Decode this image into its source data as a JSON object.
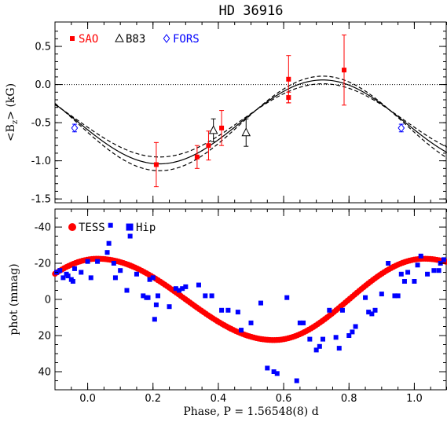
{
  "chart_data": [
    {
      "type": "scatter",
      "title": "HD 36916",
      "ylabel": "<B_z> (kG)",
      "xlim": [
        -0.1,
        1.1
      ],
      "ylim": [
        -1.55,
        0.82
      ],
      "xticks": [
        0.0,
        0.2,
        0.4,
        0.6,
        0.8,
        1.0
      ],
      "yticks": [
        -1.5,
        -1.0,
        -0.5,
        0.0,
        0.5
      ],
      "ytick_labels": [
        "-1.5",
        "-1.0",
        "-0.5",
        "0.0",
        "0.5"
      ],
      "show_xtick_labels": false,
      "zero_line": true,
      "legend_position": "top-left",
      "model": {
        "mean": -0.49,
        "amplitude": 0.55,
        "phase_of_max": 0.72,
        "band_amplitude": [
          0.48,
          0.62
        ],
        "band_mean": [
          -0.47,
          -0.51
        ]
      },
      "series": [
        {
          "name": "SAO",
          "color": "#ff0000",
          "marker": "square",
          "x": [
            0.21,
            0.335,
            0.37,
            0.41,
            0.615,
            0.615,
            0.785
          ],
          "y": [
            -1.05,
            -0.95,
            -0.8,
            -0.57,
            0.07,
            -0.17,
            0.19
          ],
          "err": [
            0.29,
            0.15,
            0.19,
            0.23,
            0.31,
            0.07,
            0.46
          ]
        },
        {
          "name": "B83",
          "color": "#000000",
          "marker": "triangle",
          "x": [
            0.385,
            0.485
          ],
          "y": [
            -0.6,
            -0.63
          ],
          "err": [
            0.15,
            0.18
          ]
        },
        {
          "name": "FORS",
          "color": "#0000ff",
          "marker": "diamond",
          "x": [
            -0.04,
            0.96
          ],
          "y": [
            -0.57,
            -0.57
          ],
          "err": [
            0.05,
            0.05
          ]
        }
      ]
    },
    {
      "type": "scatter",
      "ylabel": "phot (mmag)",
      "xlabel": "Phase, P = 1.56548(8) d",
      "xlim": [
        -0.1,
        1.1
      ],
      "ylim": [
        50,
        -50
      ],
      "y_inverted": true,
      "xticks": [
        0.0,
        0.2,
        0.4,
        0.6,
        0.8,
        1.0
      ],
      "xtick_labels": [
        "0.0",
        "0.2",
        "0.4",
        "0.6",
        "0.8",
        "1.0"
      ],
      "yticks": [
        -40,
        -20,
        0,
        20,
        40
      ],
      "ytick_labels": [
        "-40",
        "-20",
        "0",
        "20",
        "40"
      ],
      "legend_position": "top-left",
      "tess_model": {
        "mean": 0,
        "amplitude": 22.5,
        "phase_of_min_brightness": 0.57,
        "phase_of_max_brightness": 1.03,
        "step": 0.007
      },
      "series": [
        {
          "name": "TESS",
          "color": "#ff0000",
          "marker": "circle"
        },
        {
          "name": "Hip",
          "color": "#0000ff",
          "marker": "square",
          "x": [
            -0.095,
            -0.085,
            -0.075,
            -0.065,
            -0.06,
            -0.05,
            -0.045,
            -0.04,
            -0.02,
            0.0,
            0.01,
            0.03,
            0.06,
            0.065,
            0.07,
            0.08,
            0.085,
            0.1,
            0.12,
            0.13,
            0.15,
            0.17,
            0.18,
            0.185,
            0.19,
            0.2,
            0.205,
            0.21,
            0.215,
            0.25,
            0.27,
            0.28,
            0.29,
            0.3,
            0.34,
            0.36,
            0.38,
            0.41,
            0.43,
            0.46,
            0.47,
            0.5,
            0.53,
            0.55,
            0.57,
            0.58,
            0.61,
            0.64,
            0.65,
            0.66,
            0.68,
            0.7,
            0.71,
            0.72,
            0.74,
            0.76,
            0.77,
            0.78,
            0.8,
            0.81,
            0.82,
            0.85,
            0.86,
            0.87,
            0.88,
            0.9,
            0.92,
            0.94,
            0.95,
            0.96,
            0.97,
            0.98,
            1.0,
            1.01,
            1.02,
            1.04,
            1.06,
            1.075,
            1.08,
            1.09
          ],
          "y": [
            -15,
            -16,
            -12,
            -14,
            -13,
            -11,
            -10,
            -17,
            -15,
            -21,
            -12,
            -21,
            -26,
            -31,
            -41,
            -20,
            -12,
            -16,
            -5,
            -35,
            -14,
            -2,
            -1,
            -1,
            -11,
            -12,
            11,
            3,
            -2,
            4,
            -6,
            -5,
            -6,
            -7,
            -8,
            -2,
            -2,
            6,
            6,
            7,
            17,
            13,
            2,
            38,
            40,
            41,
            -1,
            45,
            13,
            13,
            22,
            28,
            26,
            22,
            6,
            21,
            27,
            6,
            20,
            18,
            15,
            -1,
            7,
            8,
            6,
            -3,
            -20,
            -2,
            -2,
            -14,
            -10,
            -15,
            -10,
            -19,
            -24,
            -14,
            -16,
            -16,
            -20,
            -22
          ]
        }
      ]
    }
  ]
}
